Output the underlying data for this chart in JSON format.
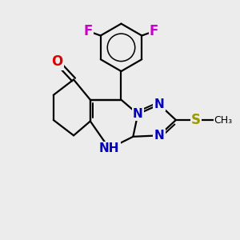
{
  "bg_color": "#ececec",
  "bond_color": "#000000",
  "bond_width": 1.6,
  "fig_width": 3.0,
  "fig_height": 3.0,
  "dpi": 100,
  "colors": {
    "O": "#dd0000",
    "N": "#0000bb",
    "S": "#999900",
    "F": "#cc00cc",
    "CH3": "#000000",
    "bond": "#000000"
  }
}
